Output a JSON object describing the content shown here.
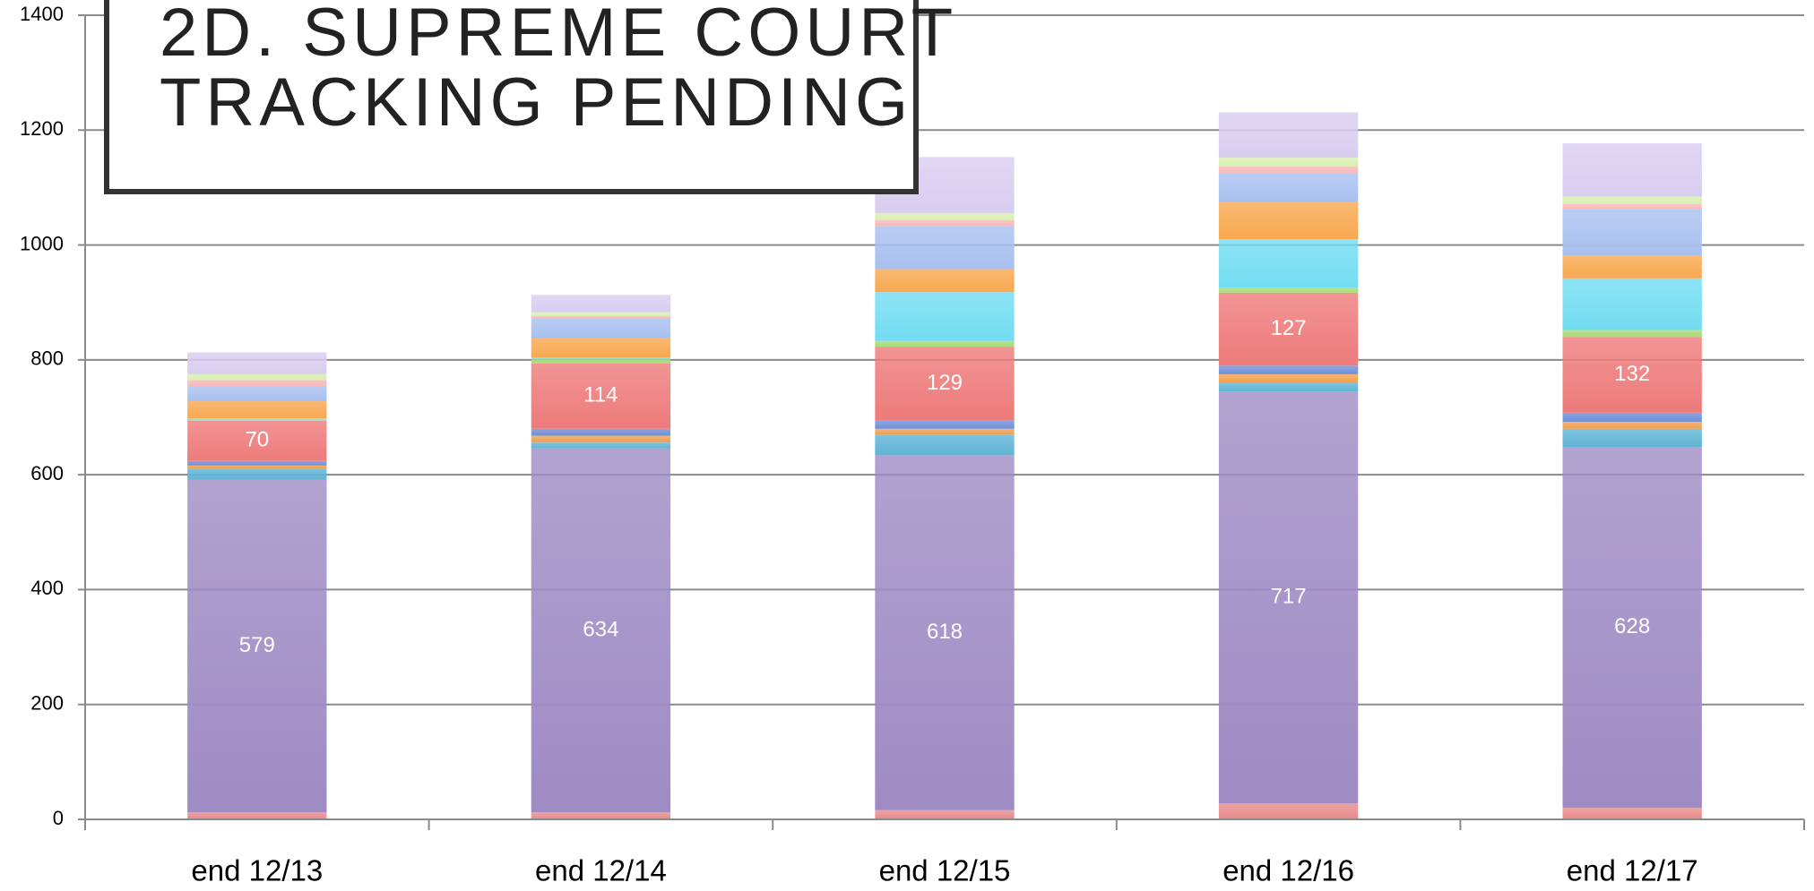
{
  "chart_data": {
    "type": "stacked-bar",
    "title": [
      "2D. SUPREME COURT",
      "TRACKING PENDING"
    ],
    "categories": [
      "end 12/13",
      "end 12/14",
      "end 12/15",
      "end 12/16",
      "end 12/17"
    ],
    "ylim": [
      0,
      1400
    ],
    "yticks": [
      0,
      200,
      400,
      600,
      800,
      1000,
      1200,
      1400
    ],
    "grid": true,
    "series": [
      {
        "color": "#e88a8a",
        "values": [
          12,
          12,
          16,
          28,
          20
        ]
      },
      {
        "color": "#9e8bc4",
        "values": [
          579,
          634,
          618,
          717,
          628
        ],
        "show_labels": true
      },
      {
        "color": "#5fb4d6",
        "values": [
          20,
          10,
          36,
          15,
          32
        ]
      },
      {
        "color": "#f0a050",
        "values": [
          5,
          12,
          10,
          15,
          12
        ]
      },
      {
        "color": "#6f8fd8",
        "values": [
          8,
          12,
          14,
          15,
          16
        ]
      },
      {
        "color": "#ee7a7a",
        "values": [
          70,
          114,
          129,
          127,
          132
        ],
        "show_labels": true
      },
      {
        "color": "#a8dc78",
        "values": [
          2,
          8,
          10,
          8,
          12
        ]
      },
      {
        "color": "#72dcf2",
        "values": [
          2,
          2,
          85,
          85,
          90
        ]
      },
      {
        "color": "#f8a850",
        "values": [
          30,
          34,
          40,
          65,
          40
        ]
      },
      {
        "color": "#a8c0f0",
        "values": [
          25,
          35,
          75,
          50,
          80
        ]
      },
      {
        "color": "#f8b8b8",
        "values": [
          12,
          3,
          10,
          12,
          10
        ]
      },
      {
        "color": "#d8f0b0",
        "values": [
          10,
          7,
          12,
          15,
          12
        ]
      },
      {
        "color": "#d8cdf0",
        "values": [
          38,
          30,
          98,
          79,
          93
        ]
      }
    ]
  }
}
